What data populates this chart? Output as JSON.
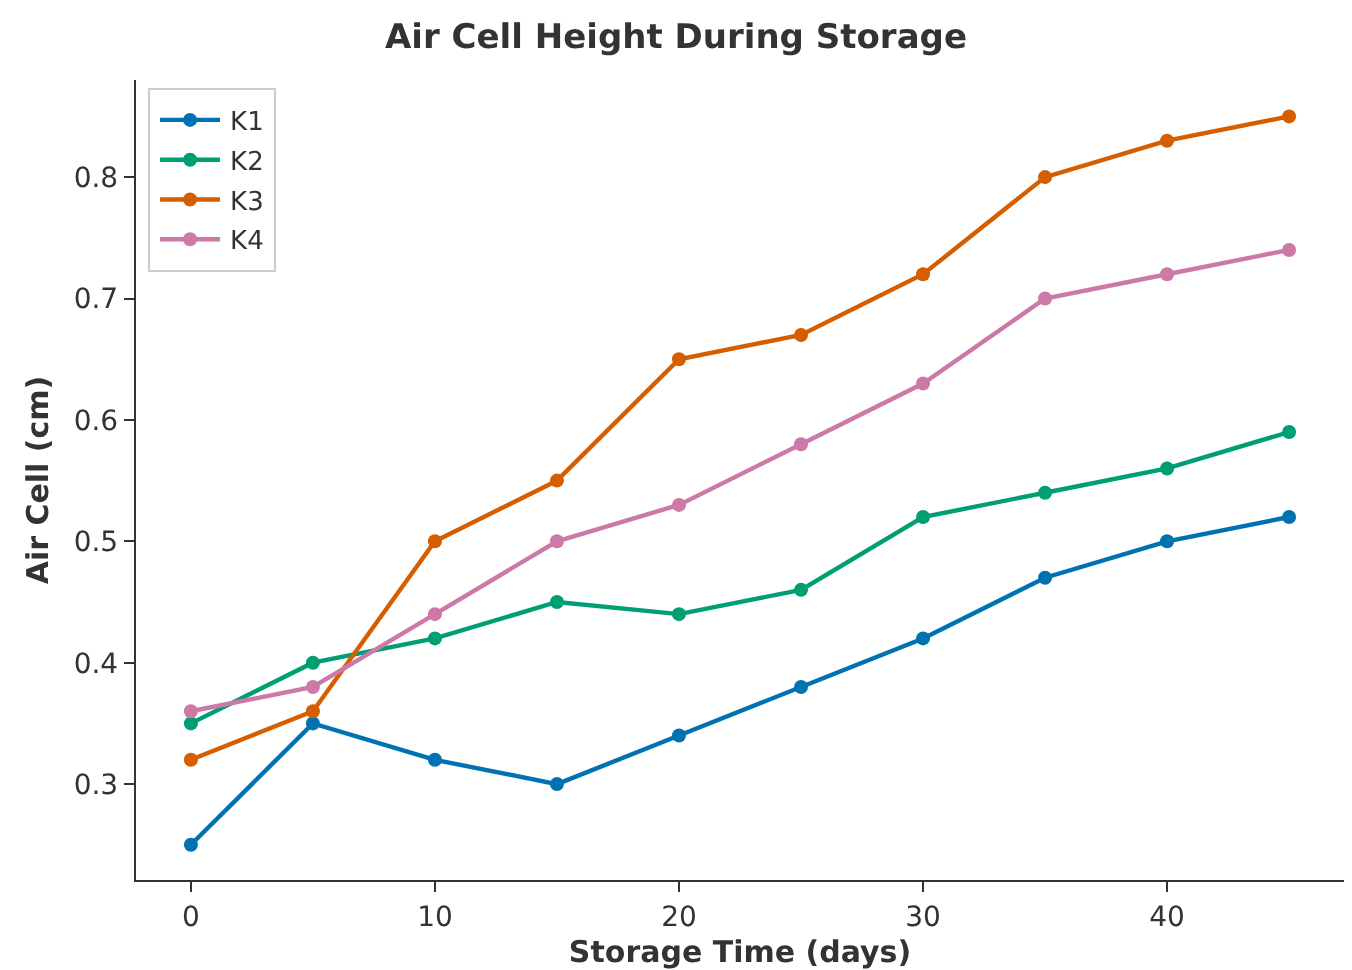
{
  "chart_data": {
    "type": "line",
    "title": "Air Cell Height During Storage",
    "xlabel": "Storage Time (days)",
    "ylabel": "Air Cell (cm)",
    "x": [
      0,
      5,
      10,
      15,
      20,
      25,
      30,
      35,
      40,
      45
    ],
    "series": [
      {
        "name": "K1",
        "color": "#0072b2",
        "values": [
          0.25,
          0.35,
          0.32,
          0.3,
          0.34,
          0.38,
          0.42,
          0.47,
          0.5,
          0.52
        ]
      },
      {
        "name": "K2",
        "color": "#009e73",
        "values": [
          0.35,
          0.4,
          0.42,
          0.45,
          0.44,
          0.46,
          0.52,
          0.54,
          0.56,
          0.59
        ]
      },
      {
        "name": "K3",
        "color": "#d55e00",
        "values": [
          0.32,
          0.36,
          0.5,
          0.55,
          0.65,
          0.67,
          0.72,
          0.8,
          0.83,
          0.85
        ]
      },
      {
        "name": "K4",
        "color": "#cc79a7",
        "values": [
          0.36,
          0.38,
          0.44,
          0.5,
          0.53,
          0.58,
          0.63,
          0.7,
          0.72,
          0.74
        ]
      }
    ],
    "xlim": [
      -2.25,
      47.25
    ],
    "xticks": [
      0,
      10,
      20,
      30,
      40
    ],
    "ylim": [
      0.221,
      0.88
    ],
    "yticks": [
      0.3,
      0.4,
      0.5,
      0.6,
      0.7,
      0.8
    ],
    "legend": "top left",
    "marker": "circle",
    "line_style": "solid"
  }
}
